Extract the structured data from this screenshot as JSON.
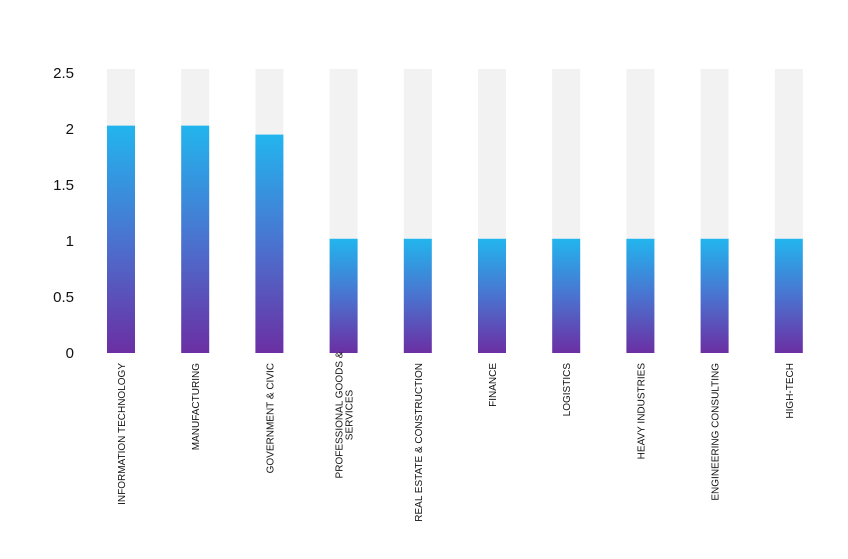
{
  "chart_data": {
    "type": "bar",
    "title": "",
    "xlabel": "",
    "ylabel": "",
    "ylim": [
      0,
      2.5
    ],
    "yticks": [
      0,
      0.5,
      1,
      1.5,
      2,
      2.5
    ],
    "ytick_labels": [
      "0",
      "0.5",
      "1",
      "1.5",
      "2",
      "2.5"
    ],
    "grid": false,
    "legend": "none",
    "categories": [
      "INFORMATION TECHNOLOGY",
      "MANUFACTURING",
      "GOVERNMENT & CIVIC",
      "PROFESSIONAL GOODS & SERVICES",
      "REAL ESTATE & CONSTRUCTION",
      "FINANCE",
      "LOGISTICS",
      "HEAVY INDUSTRIES",
      "ENGINEERING CONSULTING",
      "HIGH-TECH"
    ],
    "category_label_lines": [
      [
        "INFORMATION TECHNOLOGY"
      ],
      [
        "MANUFACTURING"
      ],
      [
        "GOVERNMENT & CIVIC"
      ],
      [
        "PROFESSIONAL GOODS &",
        "SERVICES"
      ],
      [
        "REAL ESTATE & CONSTRUCTION"
      ],
      [
        "FINANCE"
      ],
      [
        "LOGISTICS"
      ],
      [
        "HEAVY INDUSTRIES"
      ],
      [
        "ENGINEERING CONSULTING"
      ],
      [
        "HIGH-TECH"
      ]
    ],
    "values": [
      2.03,
      2.03,
      1.95,
      1.02,
      1.02,
      1.02,
      1.02,
      1.02,
      1.02,
      1.02
    ],
    "colors": {
      "bar_top": "#22b5ee",
      "bar_bottom": "#6b2fa3",
      "track": "#f2f2f2",
      "text": "#111111"
    }
  }
}
